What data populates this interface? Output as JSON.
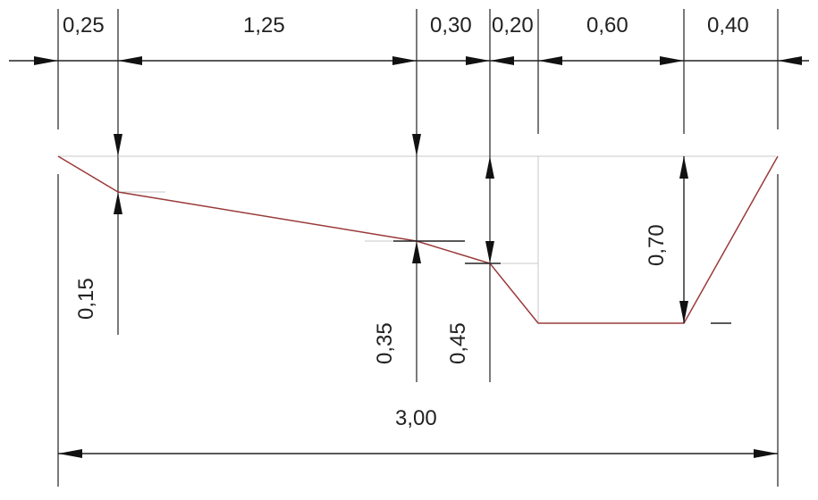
{
  "top_dimensions": [
    {
      "id": "seg1",
      "label": "0,25"
    },
    {
      "id": "seg2",
      "label": "1,25"
    },
    {
      "id": "seg3",
      "label": "0,30"
    },
    {
      "id": "seg4",
      "label": "0,20"
    },
    {
      "id": "seg5",
      "label": "0,60"
    },
    {
      "id": "seg6",
      "label": "0,40"
    }
  ],
  "vertical_dimensions": [
    {
      "id": "depth-a",
      "label": "0,15"
    },
    {
      "id": "depth-b",
      "label": "0,35"
    },
    {
      "id": "depth-c",
      "label": "0,45"
    },
    {
      "id": "depth-d",
      "label": "0,70"
    }
  ],
  "total_dimension": {
    "label": "3,00"
  },
  "colors": {
    "profile_line": "#9b3a3a",
    "dimension_line": "#222222",
    "guide_line": "#c8c8c8"
  }
}
